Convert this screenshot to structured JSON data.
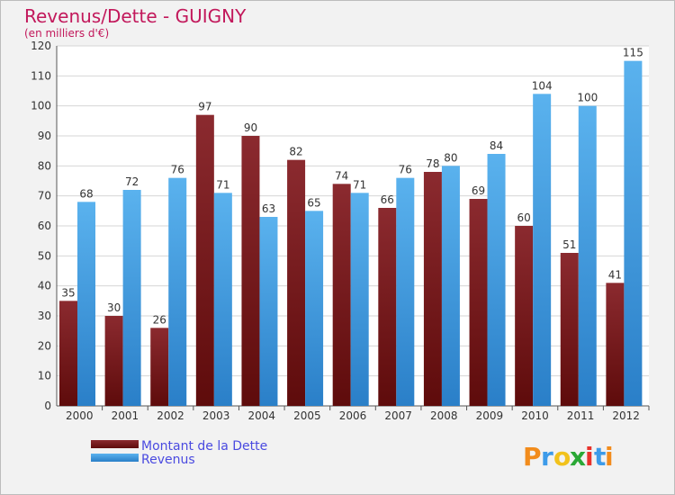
{
  "chart_data": {
    "type": "bar",
    "title": "Revenus/Dette - GUIGNY",
    "subtitle": "(en milliers d'€)",
    "categories": [
      "2000",
      "2001",
      "2002",
      "2003",
      "2004",
      "2005",
      "2006",
      "2007",
      "2008",
      "2009",
      "2010",
      "2011",
      "2012"
    ],
    "series": [
      {
        "name": "Montant de la Dette",
        "color": "#7b1a1a",
        "values": [
          35,
          30,
          26,
          97,
          90,
          82,
          74,
          66,
          78,
          69,
          60,
          51,
          41
        ]
      },
      {
        "name": "Revenus",
        "color": "#3a9be6",
        "values": [
          68,
          72,
          76,
          71,
          63,
          65,
          71,
          76,
          80,
          84,
          104,
          100,
          115
        ]
      }
    ],
    "ylim": [
      0,
      120
    ],
    "yticks": [
      0,
      10,
      20,
      30,
      40,
      50,
      60,
      70,
      80,
      90,
      100,
      110,
      120
    ],
    "grid": true,
    "legend_position": "bottom-left"
  },
  "logo": {
    "letters": [
      "P",
      "r",
      "o",
      "x",
      "i",
      "t",
      "i"
    ],
    "colors": [
      "#f28c1c",
      "#3d9be9",
      "#f2c21c",
      "#2aa836",
      "#e8322b",
      "#3d9be9",
      "#f28c1c"
    ]
  }
}
